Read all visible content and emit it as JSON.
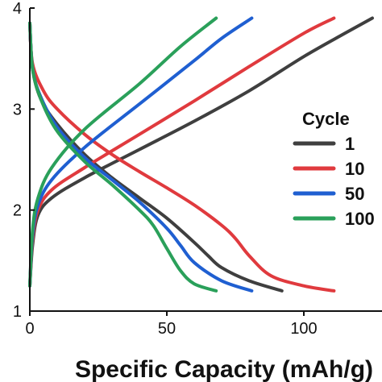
{
  "chart_data": {
    "type": "line",
    "title": "",
    "xlabel": "Specific Capacity (mAh/g)",
    "ylabel": "",
    "xlim": [
      0,
      125
    ],
    "ylim": [
      1,
      4
    ],
    "x_ticks": [
      0,
      50,
      100
    ],
    "x_tick_labels": [
      "0",
      "50",
      "100"
    ],
    "y_ticks": [
      1,
      2,
      3,
      4
    ],
    "y_tick_labels": [
      "1",
      "2",
      "3",
      "4"
    ],
    "grid": false,
    "legend": {
      "title": "Cycle",
      "placement": "right",
      "entries": [
        "1",
        "10",
        "50",
        "100"
      ]
    },
    "series": [
      {
        "name": "1",
        "color": "#3f3f3f",
        "charge": [
          [
            0,
            1.25
          ],
          [
            1,
            1.65
          ],
          [
            3,
            1.95
          ],
          [
            8,
            2.12
          ],
          [
            20,
            2.32
          ],
          [
            40,
            2.6
          ],
          [
            60,
            2.88
          ],
          [
            80,
            3.18
          ],
          [
            100,
            3.52
          ],
          [
            115,
            3.75
          ],
          [
            125,
            3.9
          ]
        ],
        "discharge": [
          [
            0,
            3.85
          ],
          [
            1,
            3.4
          ],
          [
            4,
            3.1
          ],
          [
            10,
            2.85
          ],
          [
            20,
            2.55
          ],
          [
            30,
            2.32
          ],
          [
            40,
            2.12
          ],
          [
            50,
            1.92
          ],
          [
            60,
            1.68
          ],
          [
            65,
            1.55
          ],
          [
            70,
            1.43
          ],
          [
            80,
            1.3
          ],
          [
            92,
            1.2
          ]
        ]
      },
      {
        "name": "10",
        "color": "#e03a3e",
        "charge": [
          [
            0,
            1.25
          ],
          [
            1,
            1.7
          ],
          [
            3,
            2.0
          ],
          [
            8,
            2.2
          ],
          [
            20,
            2.42
          ],
          [
            40,
            2.75
          ],
          [
            60,
            3.08
          ],
          [
            80,
            3.42
          ],
          [
            100,
            3.75
          ],
          [
            111,
            3.9
          ]
        ],
        "discharge": [
          [
            0,
            3.85
          ],
          [
            1,
            3.45
          ],
          [
            5,
            3.18
          ],
          [
            10,
            3.0
          ],
          [
            20,
            2.75
          ],
          [
            30,
            2.55
          ],
          [
            40,
            2.38
          ],
          [
            50,
            2.22
          ],
          [
            60,
            2.05
          ],
          [
            70,
            1.85
          ],
          [
            75,
            1.72
          ],
          [
            80,
            1.55
          ],
          [
            88,
            1.35
          ],
          [
            100,
            1.25
          ],
          [
            111,
            1.2
          ]
        ]
      },
      {
        "name": "50",
        "color": "#1f5fd1",
        "charge": [
          [
            0,
            1.25
          ],
          [
            1,
            1.75
          ],
          [
            3,
            2.05
          ],
          [
            8,
            2.3
          ],
          [
            20,
            2.62
          ],
          [
            40,
            3.05
          ],
          [
            60,
            3.48
          ],
          [
            70,
            3.7
          ],
          [
            81,
            3.9
          ]
        ],
        "discharge": [
          [
            0,
            3.85
          ],
          [
            1,
            3.4
          ],
          [
            4,
            3.12
          ],
          [
            10,
            2.82
          ],
          [
            20,
            2.52
          ],
          [
            30,
            2.3
          ],
          [
            40,
            2.08
          ],
          [
            50,
            1.82
          ],
          [
            55,
            1.65
          ],
          [
            60,
            1.48
          ],
          [
            70,
            1.3
          ],
          [
            81,
            1.2
          ]
        ]
      },
      {
        "name": "100",
        "color": "#2aa05a",
        "charge": [
          [
            0,
            1.25
          ],
          [
            1,
            1.8
          ],
          [
            3,
            2.12
          ],
          [
            8,
            2.42
          ],
          [
            20,
            2.8
          ],
          [
            40,
            3.25
          ],
          [
            55,
            3.62
          ],
          [
            68,
            3.9
          ]
        ],
        "discharge": [
          [
            0,
            3.85
          ],
          [
            1,
            3.4
          ],
          [
            4,
            3.1
          ],
          [
            10,
            2.78
          ],
          [
            20,
            2.48
          ],
          [
            30,
            2.25
          ],
          [
            40,
            2.0
          ],
          [
            45,
            1.85
          ],
          [
            50,
            1.62
          ],
          [
            55,
            1.4
          ],
          [
            60,
            1.27
          ],
          [
            68,
            1.2
          ]
        ]
      }
    ]
  }
}
